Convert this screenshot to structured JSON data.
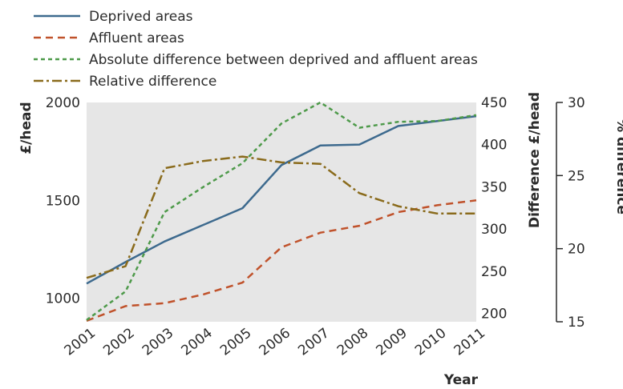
{
  "chart_data": {
    "type": "line",
    "x": [
      "2001",
      "2002",
      "2003",
      "2004",
      "2005",
      "2006",
      "2007",
      "2008",
      "2009",
      "2010",
      "2011"
    ],
    "xlabel": "Year",
    "axes": {
      "left": {
        "label": "£/head",
        "ylim": [
          880,
          2000
        ],
        "ticks": [
          "1000",
          "1500",
          "2000"
        ],
        "tick_values": [
          1000,
          1500,
          2000
        ]
      },
      "middle": {
        "label": "Difference £/head",
        "ylim": [
          190,
          450
        ],
        "ticks": [
          "200",
          "250",
          "300",
          "350",
          "400",
          "450"
        ],
        "tick_values": [
          200,
          250,
          300,
          350,
          400,
          450
        ]
      },
      "right": {
        "label": "% difference",
        "ylim": [
          15,
          30
        ],
        "ticks": [
          "15",
          "20",
          "25",
          "30"
        ],
        "tick_values": [
          15,
          20,
          25,
          30
        ]
      }
    },
    "series": [
      {
        "name": "Deprived areas",
        "axis": "left",
        "color": "#3d6a8e",
        "dash": "solid",
        "values": [
          1075,
          1185,
          1290,
          1375,
          1460,
          1680,
          1780,
          1785,
          1880,
          1905,
          1930
        ]
      },
      {
        "name": "Affluent areas",
        "axis": "left",
        "color": "#c0522b",
        "dash": "dashed",
        "values": [
          885,
          960,
          975,
          1020,
          1080,
          1260,
          1335,
          1370,
          1440,
          1475,
          1500
        ]
      },
      {
        "name": "Absolute difference between deprived and affluent areas",
        "axis": "middle",
        "color": "#4e9a4a",
        "dash": "dotted",
        "values": [
          192,
          226,
          320,
          350,
          378,
          425,
          450,
          420,
          427,
          428,
          435
        ]
      },
      {
        "name": "Relative difference",
        "axis": "right",
        "color": "#8a6b1c",
        "dash": "dashdot",
        "values": [
          18.0,
          18.8,
          25.5,
          26.0,
          26.3,
          25.9,
          25.8,
          23.8,
          22.9,
          22.4,
          22.4
        ]
      }
    ],
    "grid": false,
    "legend": "top-left"
  }
}
